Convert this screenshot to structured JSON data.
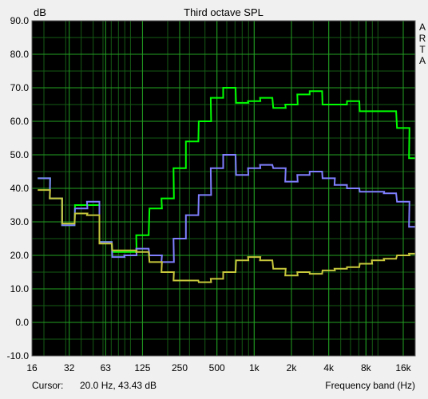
{
  "chart_data": {
    "type": "line",
    "step": true,
    "title": "Third octave SPL",
    "ylabel": "dB",
    "xlabel": "Frequency band (Hz)",
    "ylim": [
      -10,
      90
    ],
    "yticks": [
      -10,
      0,
      10,
      20,
      30,
      40,
      50,
      60,
      70,
      80,
      90
    ],
    "ytick_labels": [
      "-10.0",
      "0.0",
      "10.0",
      "20.0",
      "30.0",
      "40.0",
      "50.0",
      "60.0",
      "70.0",
      "80.0",
      "90.0"
    ],
    "xlim": [
      16,
      20000
    ],
    "xscale": "log",
    "xticks": [
      16,
      32,
      63,
      125,
      250,
      500,
      1000,
      2000,
      4000,
      8000,
      16000
    ],
    "xtick_labels": [
      "16",
      "32",
      "63",
      "125",
      "250",
      "500",
      "1k",
      "2k",
      "4k",
      "8k",
      "16k"
    ],
    "grid": true,
    "bands_hz": [
      20,
      25,
      31.5,
      40,
      50,
      63,
      80,
      100,
      125,
      160,
      200,
      250,
      315,
      400,
      500,
      630,
      800,
      1000,
      1250,
      1600,
      2000,
      2500,
      3150,
      4000,
      5000,
      6300,
      8000,
      10000,
      12500,
      16000,
      20000
    ],
    "series": [
      {
        "color": "#00ff00",
        "values": [
          43,
          37,
          29,
          35,
          35,
          24,
          21,
          21,
          26,
          34,
          37,
          46,
          54,
          60,
          67,
          70,
          65.5,
          66,
          67,
          64,
          65,
          68,
          69,
          65,
          65,
          66,
          63,
          63,
          63,
          58,
          49
        ]
      },
      {
        "color": "#7f7fff",
        "values": [
          43,
          37,
          29,
          34,
          36,
          24,
          19.5,
          20,
          22,
          20,
          18,
          25,
          32,
          38,
          46,
          50,
          44,
          46,
          47,
          46,
          42,
          44,
          45,
          43,
          41,
          40,
          39,
          39,
          38.5,
          36,
          28.5
        ]
      },
      {
        "color": "#c8c83c",
        "values": [
          39.5,
          37,
          29.5,
          32.5,
          32,
          23.5,
          21.5,
          21.5,
          21,
          18,
          15,
          12.5,
          12.5,
          12,
          13,
          15,
          18.5,
          19.5,
          18.5,
          16,
          14,
          15,
          14.5,
          15.5,
          16,
          16.5,
          17.5,
          18.5,
          19,
          20,
          20.5
        ]
      }
    ],
    "side_label": [
      "A",
      "R",
      "T",
      "A"
    ]
  },
  "cursor": {
    "label": "Cursor:",
    "value": "20.0 Hz, 43.43 dB"
  }
}
